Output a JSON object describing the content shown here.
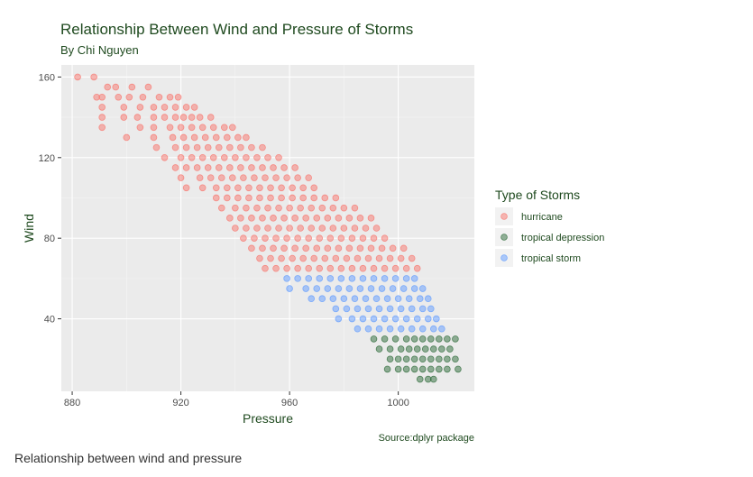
{
  "chart_data": {
    "type": "scatter",
    "title": "Relationship Between Wind and Pressure of Storms",
    "subtitle": "By Chi Nguyen",
    "xlabel": "Pressure",
    "ylabel": "Wind",
    "caption": "Source:dplyr package",
    "xlim": [
      876,
      1028
    ],
    "ylim": [
      4,
      166
    ],
    "x_ticks": [
      880,
      920,
      960,
      1000
    ],
    "y_ticks": [
      40,
      80,
      120,
      160
    ],
    "grid": true,
    "legend": {
      "title": "Type of Storms",
      "placement": "right"
    },
    "series": [
      {
        "name": "hurricane",
        "color": "#F8766D",
        "points": [
          [
            882,
            160
          ],
          [
            888,
            160
          ],
          [
            893,
            155
          ],
          [
            896,
            155
          ],
          [
            902,
            155
          ],
          [
            908,
            155
          ],
          [
            889,
            150
          ],
          [
            891,
            150
          ],
          [
            897,
            150
          ],
          [
            901,
            150
          ],
          [
            906,
            150
          ],
          [
            912,
            150
          ],
          [
            916,
            150
          ],
          [
            919,
            150
          ],
          [
            891,
            145
          ],
          [
            899,
            145
          ],
          [
            905,
            145
          ],
          [
            910,
            145
          ],
          [
            914,
            145
          ],
          [
            918,
            145
          ],
          [
            922,
            145
          ],
          [
            925,
            145
          ],
          [
            891,
            140
          ],
          [
            899,
            140
          ],
          [
            904,
            140
          ],
          [
            910,
            140
          ],
          [
            914,
            140
          ],
          [
            918,
            140
          ],
          [
            921,
            140
          ],
          [
            924,
            140
          ],
          [
            927,
            140
          ],
          [
            931,
            140
          ],
          [
            891,
            135
          ],
          [
            905,
            135
          ],
          [
            910,
            135
          ],
          [
            916,
            135
          ],
          [
            920,
            135
          ],
          [
            924,
            135
          ],
          [
            928,
            135
          ],
          [
            932,
            135
          ],
          [
            936,
            135
          ],
          [
            939,
            135
          ],
          [
            900,
            130
          ],
          [
            910,
            130
          ],
          [
            917,
            130
          ],
          [
            921,
            130
          ],
          [
            925,
            130
          ],
          [
            929,
            130
          ],
          [
            933,
            130
          ],
          [
            937,
            130
          ],
          [
            941,
            130
          ],
          [
            944,
            130
          ],
          [
            911,
            125
          ],
          [
            918,
            125
          ],
          [
            922,
            125
          ],
          [
            926,
            125
          ],
          [
            930,
            125
          ],
          [
            934,
            125
          ],
          [
            938,
            125
          ],
          [
            942,
            125
          ],
          [
            946,
            125
          ],
          [
            950,
            125
          ],
          [
            914,
            120
          ],
          [
            920,
            120
          ],
          [
            924,
            120
          ],
          [
            928,
            120
          ],
          [
            932,
            120
          ],
          [
            936,
            120
          ],
          [
            940,
            120
          ],
          [
            944,
            120
          ],
          [
            948,
            120
          ],
          [
            952,
            120
          ],
          [
            956,
            120
          ],
          [
            918,
            115
          ],
          [
            922,
            115
          ],
          [
            926,
            115
          ],
          [
            930,
            115
          ],
          [
            934,
            115
          ],
          [
            938,
            115
          ],
          [
            942,
            115
          ],
          [
            946,
            115
          ],
          [
            950,
            115
          ],
          [
            954,
            115
          ],
          [
            958,
            115
          ],
          [
            962,
            115
          ],
          [
            920,
            110
          ],
          [
            927,
            110
          ],
          [
            931,
            110
          ],
          [
            935,
            110
          ],
          [
            939,
            110
          ],
          [
            943,
            110
          ],
          [
            947,
            110
          ],
          [
            951,
            110
          ],
          [
            955,
            110
          ],
          [
            959,
            110
          ],
          [
            963,
            110
          ],
          [
            967,
            110
          ],
          [
            922,
            105
          ],
          [
            928,
            105
          ],
          [
            933,
            105
          ],
          [
            937,
            105
          ],
          [
            941,
            105
          ],
          [
            945,
            105
          ],
          [
            949,
            105
          ],
          [
            953,
            105
          ],
          [
            957,
            105
          ],
          [
            961,
            105
          ],
          [
            965,
            105
          ],
          [
            969,
            105
          ],
          [
            933,
            100
          ],
          [
            937,
            100
          ],
          [
            941,
            100
          ],
          [
            945,
            100
          ],
          [
            949,
            100
          ],
          [
            953,
            100
          ],
          [
            957,
            100
          ],
          [
            961,
            100
          ],
          [
            965,
            100
          ],
          [
            969,
            100
          ],
          [
            973,
            100
          ],
          [
            977,
            100
          ],
          [
            935,
            95
          ],
          [
            940,
            95
          ],
          [
            944,
            95
          ],
          [
            948,
            95
          ],
          [
            952,
            95
          ],
          [
            956,
            95
          ],
          [
            960,
            95
          ],
          [
            964,
            95
          ],
          [
            968,
            95
          ],
          [
            972,
            95
          ],
          [
            976,
            95
          ],
          [
            980,
            95
          ],
          [
            984,
            95
          ],
          [
            938,
            90
          ],
          [
            942,
            90
          ],
          [
            946,
            90
          ],
          [
            950,
            90
          ],
          [
            954,
            90
          ],
          [
            958,
            90
          ],
          [
            962,
            90
          ],
          [
            966,
            90
          ],
          [
            970,
            90
          ],
          [
            974,
            90
          ],
          [
            978,
            90
          ],
          [
            982,
            90
          ],
          [
            986,
            90
          ],
          [
            990,
            90
          ],
          [
            940,
            85
          ],
          [
            944,
            85
          ],
          [
            948,
            85
          ],
          [
            952,
            85
          ],
          [
            956,
            85
          ],
          [
            960,
            85
          ],
          [
            964,
            85
          ],
          [
            968,
            85
          ],
          [
            972,
            85
          ],
          [
            976,
            85
          ],
          [
            980,
            85
          ],
          [
            984,
            85
          ],
          [
            988,
            85
          ],
          [
            992,
            85
          ],
          [
            943,
            80
          ],
          [
            947,
            80
          ],
          [
            951,
            80
          ],
          [
            955,
            80
          ],
          [
            959,
            80
          ],
          [
            963,
            80
          ],
          [
            967,
            80
          ],
          [
            971,
            80
          ],
          [
            975,
            80
          ],
          [
            979,
            80
          ],
          [
            983,
            80
          ],
          [
            987,
            80
          ],
          [
            991,
            80
          ],
          [
            995,
            80
          ],
          [
            946,
            75
          ],
          [
            950,
            75
          ],
          [
            954,
            75
          ],
          [
            958,
            75
          ],
          [
            962,
            75
          ],
          [
            966,
            75
          ],
          [
            970,
            75
          ],
          [
            974,
            75
          ],
          [
            978,
            75
          ],
          [
            982,
            75
          ],
          [
            986,
            75
          ],
          [
            990,
            75
          ],
          [
            994,
            75
          ],
          [
            998,
            75
          ],
          [
            1002,
            75
          ],
          [
            949,
            70
          ],
          [
            953,
            70
          ],
          [
            957,
            70
          ],
          [
            961,
            70
          ],
          [
            965,
            70
          ],
          [
            969,
            70
          ],
          [
            973,
            70
          ],
          [
            977,
            70
          ],
          [
            981,
            70
          ],
          [
            985,
            70
          ],
          [
            989,
            70
          ],
          [
            993,
            70
          ],
          [
            997,
            70
          ],
          [
            1001,
            70
          ],
          [
            1005,
            70
          ],
          [
            951,
            65
          ],
          [
            955,
            65
          ],
          [
            959,
            65
          ],
          [
            963,
            65
          ],
          [
            967,
            65
          ],
          [
            971,
            65
          ],
          [
            975,
            65
          ],
          [
            979,
            65
          ],
          [
            983,
            65
          ],
          [
            987,
            65
          ],
          [
            991,
            65
          ],
          [
            995,
            65
          ],
          [
            999,
            65
          ],
          [
            1003,
            65
          ],
          [
            1007,
            65
          ]
        ]
      },
      {
        "name": "tropical depression",
        "color": "#2E6B3A",
        "points": [
          [
            991,
            30
          ],
          [
            995,
            30
          ],
          [
            999,
            30
          ],
          [
            1003,
            30
          ],
          [
            1006,
            30
          ],
          [
            1009,
            30
          ],
          [
            1012,
            30
          ],
          [
            1015,
            30
          ],
          [
            1018,
            30
          ],
          [
            1021,
            30
          ],
          [
            993,
            25
          ],
          [
            997,
            25
          ],
          [
            1001,
            25
          ],
          [
            1004,
            25
          ],
          [
            1007,
            25
          ],
          [
            1010,
            25
          ],
          [
            1013,
            25
          ],
          [
            1016,
            25
          ],
          [
            1019,
            25
          ],
          [
            997,
            20
          ],
          [
            1000,
            20
          ],
          [
            1003,
            20
          ],
          [
            1006,
            20
          ],
          [
            1009,
            20
          ],
          [
            1012,
            20
          ],
          [
            1015,
            20
          ],
          [
            1018,
            20
          ],
          [
            1021,
            20
          ],
          [
            996,
            15
          ],
          [
            1000,
            15
          ],
          [
            1003,
            15
          ],
          [
            1006,
            15
          ],
          [
            1009,
            15
          ],
          [
            1012,
            15
          ],
          [
            1015,
            15
          ],
          [
            1018,
            15
          ],
          [
            1022,
            15
          ],
          [
            1008,
            10
          ],
          [
            1011,
            10
          ],
          [
            1013,
            10
          ]
        ]
      },
      {
        "name": "tropical storm",
        "color": "#619CFF",
        "points": [
          [
            959,
            60
          ],
          [
            963,
            60
          ],
          [
            967,
            60
          ],
          [
            971,
            60
          ],
          [
            975,
            60
          ],
          [
            979,
            60
          ],
          [
            983,
            60
          ],
          [
            987,
            60
          ],
          [
            991,
            60
          ],
          [
            995,
            60
          ],
          [
            999,
            60
          ],
          [
            1003,
            60
          ],
          [
            1006,
            60
          ],
          [
            960,
            55
          ],
          [
            966,
            55
          ],
          [
            970,
            55
          ],
          [
            974,
            55
          ],
          [
            978,
            55
          ],
          [
            982,
            55
          ],
          [
            986,
            55
          ],
          [
            990,
            55
          ],
          [
            994,
            55
          ],
          [
            998,
            55
          ],
          [
            1002,
            55
          ],
          [
            1006,
            55
          ],
          [
            1009,
            55
          ],
          [
            968,
            50
          ],
          [
            972,
            50
          ],
          [
            976,
            50
          ],
          [
            980,
            50
          ],
          [
            984,
            50
          ],
          [
            988,
            50
          ],
          [
            992,
            50
          ],
          [
            996,
            50
          ],
          [
            1000,
            50
          ],
          [
            1004,
            50
          ],
          [
            1008,
            50
          ],
          [
            1011,
            50
          ],
          [
            977,
            45
          ],
          [
            981,
            45
          ],
          [
            985,
            45
          ],
          [
            989,
            45
          ],
          [
            993,
            45
          ],
          [
            997,
            45
          ],
          [
            1001,
            45
          ],
          [
            1005,
            45
          ],
          [
            1009,
            45
          ],
          [
            1012,
            45
          ],
          [
            978,
            40
          ],
          [
            983,
            40
          ],
          [
            987,
            40
          ],
          [
            991,
            40
          ],
          [
            995,
            40
          ],
          [
            999,
            40
          ],
          [
            1003,
            40
          ],
          [
            1007,
            40
          ],
          [
            1011,
            40
          ],
          [
            1014,
            40
          ],
          [
            985,
            35
          ],
          [
            989,
            35
          ],
          [
            993,
            35
          ],
          [
            997,
            35
          ],
          [
            1001,
            35
          ],
          [
            1005,
            35
          ],
          [
            1009,
            35
          ],
          [
            1013,
            35
          ],
          [
            1016,
            35
          ]
        ]
      }
    ]
  },
  "footer_text": "Relationship between wind and pressure"
}
